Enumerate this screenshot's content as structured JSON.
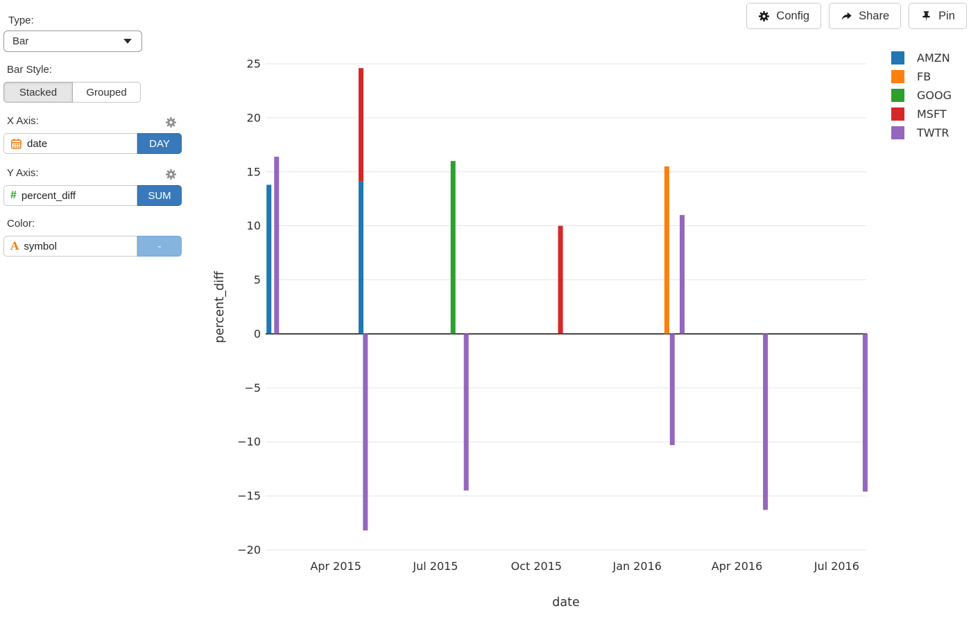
{
  "sidebar": {
    "type_label": "Type:",
    "type_value": "Bar",
    "bar_style_label": "Bar Style:",
    "bar_style_options": [
      "Stacked",
      "Grouped"
    ],
    "bar_style_selected": "Stacked",
    "x_axis": {
      "label": "X Axis:",
      "field": "date",
      "agg": "DAY",
      "field_icon": "calendar-icon"
    },
    "y_axis": {
      "label": "Y Axis:",
      "field": "percent_diff",
      "agg": "SUM",
      "field_icon": "number-icon",
      "icon_glyph": "#"
    },
    "color": {
      "label": "Color:",
      "field": "symbol",
      "agg": "-",
      "field_icon": "text-icon",
      "icon_glyph": "A"
    }
  },
  "toolbar": {
    "config_label": "Config",
    "share_label": "Share",
    "pin_label": "Pin"
  },
  "chart_data": {
    "type": "bar",
    "bar_style": "stacked",
    "title": "",
    "xlabel": "date",
    "ylabel": "percent_diff",
    "ylim": [
      -20,
      25
    ],
    "grid": true,
    "legend_position": "right",
    "x_domain": [
      "2015-01-27",
      "2016-07-28"
    ],
    "x_ticks": [
      {
        "label": "Apr 2015",
        "date": "2015-04-01"
      },
      {
        "label": "Jul 2015",
        "date": "2015-07-01"
      },
      {
        "label": "Oct 2015",
        "date": "2015-10-01"
      },
      {
        "label": "Jan 2016",
        "date": "2016-01-01"
      },
      {
        "label": "Apr 2016",
        "date": "2016-04-01"
      },
      {
        "label": "Jul 2016",
        "date": "2016-07-01"
      }
    ],
    "y_ticks": [
      {
        "value": 25,
        "label": "25"
      },
      {
        "value": 20,
        "label": "20"
      },
      {
        "value": 15,
        "label": "15"
      },
      {
        "value": 10,
        "label": "10"
      },
      {
        "value": 5,
        "label": "5"
      },
      {
        "value": 0,
        "label": "0"
      },
      {
        "value": -5,
        "label": "−5"
      },
      {
        "value": -10,
        "label": "−10"
      },
      {
        "value": -15,
        "label": "−15"
      },
      {
        "value": -20,
        "label": "−20"
      }
    ],
    "colors": {
      "AMZN": "#1f77b4",
      "FB": "#ff7f0e",
      "GOOG": "#2ca02c",
      "MSFT": "#d62728",
      "TWTR": "#9467bd"
    },
    "legend": [
      {
        "label": "AMZN",
        "color": "#1f77b4"
      },
      {
        "label": "FB",
        "color": "#ff7f0e"
      },
      {
        "label": "GOOG",
        "color": "#2ca02c"
      },
      {
        "label": "MSFT",
        "color": "#d62728"
      },
      {
        "label": "TWTR",
        "color": "#9467bd"
      }
    ],
    "bars": [
      {
        "date": "2015-01-30",
        "segments": [
          {
            "symbol": "AMZN",
            "value": 13.8
          }
        ]
      },
      {
        "date": "2015-02-06",
        "segments": [
          {
            "symbol": "TWTR",
            "value": 16.4
          }
        ]
      },
      {
        "date": "2015-04-24",
        "segments": [
          {
            "symbol": "AMZN",
            "value": 14.1
          },
          {
            "symbol": "MSFT",
            "value": 10.5
          }
        ]
      },
      {
        "date": "2015-04-28",
        "segments": [
          {
            "symbol": "TWTR",
            "value": -18.2
          }
        ]
      },
      {
        "date": "2015-07-17",
        "segments": [
          {
            "symbol": "GOOG",
            "value": 16.0
          }
        ]
      },
      {
        "date": "2015-07-29",
        "segments": [
          {
            "symbol": "TWTR",
            "value": -14.5
          }
        ]
      },
      {
        "date": "2015-10-23",
        "segments": [
          {
            "symbol": "MSFT",
            "value": 10.0
          }
        ]
      },
      {
        "date": "2016-01-28",
        "segments": [
          {
            "symbol": "FB",
            "value": 15.5
          }
        ]
      },
      {
        "date": "2016-02-02",
        "segments": [
          {
            "symbol": "TWTR",
            "value": -10.3
          }
        ]
      },
      {
        "date": "2016-02-11",
        "segments": [
          {
            "symbol": "TWTR",
            "value": 11.0
          }
        ]
      },
      {
        "date": "2016-04-27",
        "segments": [
          {
            "symbol": "TWTR",
            "value": -16.3
          }
        ]
      },
      {
        "date": "2016-07-27",
        "segments": [
          {
            "symbol": "TWTR",
            "value": -14.6
          }
        ]
      }
    ]
  }
}
